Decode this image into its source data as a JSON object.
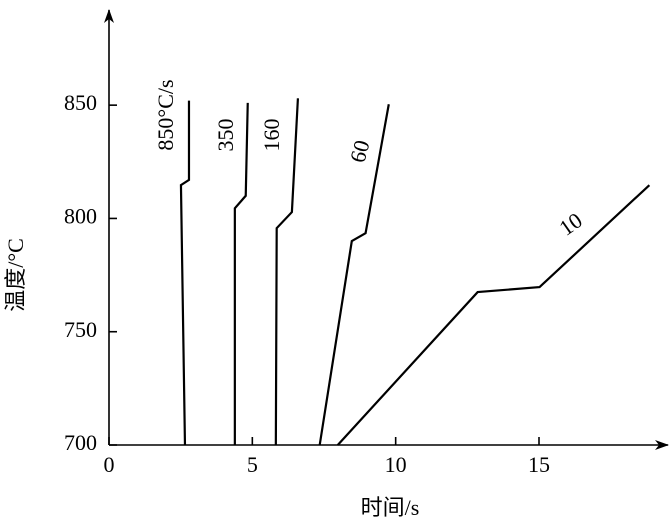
{
  "chart_data": {
    "type": "line",
    "xlabel": "时间/s",
    "ylabel": "温度/°C",
    "xlim": [
      0,
      19.5
    ],
    "ylim": [
      700,
      892
    ],
    "xticks": [
      0,
      5,
      10,
      15
    ],
    "yticks": [
      700,
      750,
      800,
      850
    ],
    "series": [
      {
        "name": "850°C/s",
        "color": "#000000",
        "x": [
          2.65,
          2.51,
          2.79,
          2.79
        ],
        "values": [
          700,
          814.7,
          817,
          852
        ]
      },
      {
        "name": "350",
        "color": "#000000",
        "x": [
          4.39,
          4.39,
          4.77,
          4.84
        ],
        "values": [
          700,
          804.5,
          810,
          851
        ]
      },
      {
        "name": "160",
        "color": "#000000",
        "x": [
          5.82,
          5.85,
          6.38,
          6.59
        ],
        "values": [
          700,
          795.7,
          802.8,
          853
        ]
      },
      {
        "name": "60",
        "color": "#000000",
        "x": [
          7.35,
          8.47,
          8.95,
          9.76
        ],
        "values": [
          700,
          790,
          793.5,
          850.4
        ]
      },
      {
        "name": "10",
        "color": "#000000",
        "x": [
          7.98,
          12.86,
          15.02,
          18.85
        ],
        "values": [
          700,
          767.5,
          769.7,
          814.7
        ]
      }
    ]
  }
}
